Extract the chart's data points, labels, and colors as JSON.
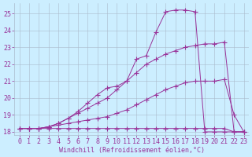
{
  "xlabel": "Windchill (Refroidissement éolien,°C)",
  "background_color": "#cceeff",
  "grid_color": "#aabbcc",
  "line_color": "#993399",
  "marker": "+",
  "x_values": [
    0,
    1,
    2,
    3,
    4,
    5,
    6,
    7,
    8,
    9,
    10,
    11,
    12,
    13,
    14,
    15,
    16,
    17,
    18,
    19,
    20,
    21,
    22,
    23
  ],
  "series": [
    [
      18.2,
      18.2,
      18.2,
      18.2,
      18.2,
      18.2,
      18.2,
      18.2,
      18.2,
      18.2,
      18.2,
      18.2,
      18.2,
      18.2,
      18.2,
      18.2,
      18.2,
      18.2,
      18.2,
      18.2,
      18.2,
      18.2,
      18.0,
      18.0
    ],
    [
      18.2,
      18.2,
      18.2,
      18.3,
      18.4,
      18.5,
      18.6,
      18.7,
      18.8,
      18.9,
      19.1,
      19.3,
      19.6,
      19.9,
      20.2,
      20.5,
      20.7,
      20.9,
      21.0,
      21.0,
      21.0,
      21.1,
      19.0,
      18.0
    ],
    [
      18.2,
      18.2,
      18.2,
      18.3,
      18.5,
      18.8,
      19.1,
      19.4,
      19.7,
      20.0,
      20.5,
      21.0,
      21.5,
      22.0,
      22.3,
      22.6,
      22.8,
      23.0,
      23.1,
      23.2,
      23.2,
      23.3,
      18.0,
      18.0
    ],
    [
      18.2,
      18.2,
      18.2,
      18.3,
      18.5,
      18.8,
      19.2,
      19.7,
      20.2,
      20.6,
      20.7,
      21.0,
      22.3,
      22.5,
      23.9,
      25.1,
      25.2,
      25.2,
      25.1,
      18.0,
      18.0,
      18.0,
      18.0,
      18.0
    ]
  ],
  "xlim": [
    -0.5,
    23.5
  ],
  "ylim": [
    17.8,
    25.6
  ],
  "yticks": [
    18,
    19,
    20,
    21,
    22,
    23,
    24,
    25
  ],
  "xtick_labels": [
    "0",
    "1",
    "2",
    "3",
    "4",
    "5",
    "6",
    "7",
    "8",
    "9",
    "10",
    "11",
    "12",
    "13",
    "14",
    "15",
    "16",
    "17",
    "18",
    "19",
    "20",
    "21",
    "22",
    "23"
  ],
  "xlabel_fontsize": 6,
  "tick_fontsize": 6,
  "marker_size": 4,
  "linewidth": 0.7
}
